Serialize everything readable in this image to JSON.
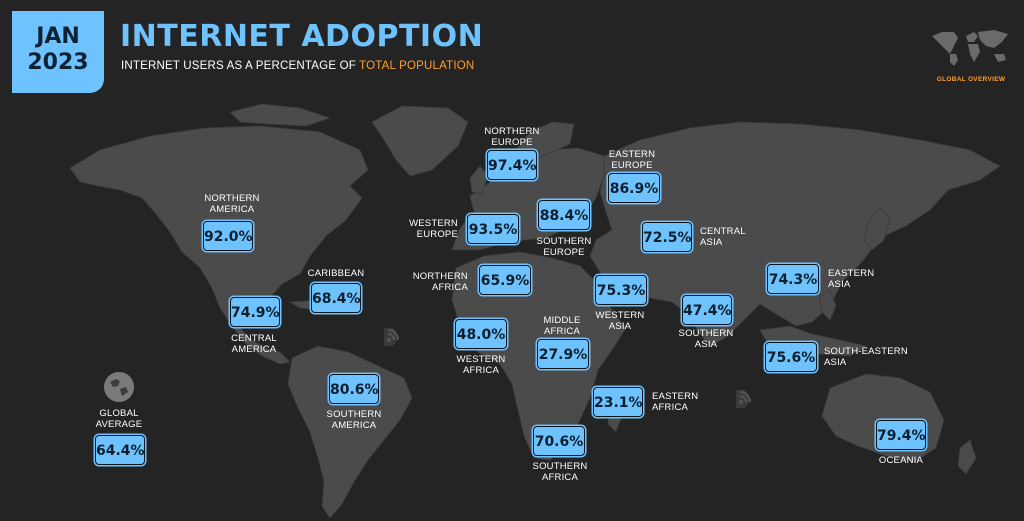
{
  "header": {
    "month": "JAN",
    "year": "2023",
    "title": "INTERNET ADOPTION",
    "subtitle_prefix": "INTERNET USERS AS A PERCENTAGE OF ",
    "subtitle_highlight": "TOTAL POPULATION"
  },
  "overview": {
    "label": "GLOBAL OVERVIEW"
  },
  "colors": {
    "accent": "#6ec3ff",
    "highlight": "#ff9e2b",
    "background": "#242424",
    "land": "#4a4a4a"
  },
  "regions": {
    "northern_america": {
      "name_line1": "NORTHERN",
      "name_line2": "AMERICA",
      "value": "92.0%"
    },
    "central_america": {
      "name_line1": "CENTRAL",
      "name_line2": "AMERICA",
      "value": "74.9%"
    },
    "caribbean": {
      "name_line1": "CARIBBEAN",
      "value": "68.4%"
    },
    "southern_america": {
      "name_line1": "SOUTHERN",
      "name_line2": "AMERICA",
      "value": "80.6%"
    },
    "northern_europe": {
      "name_line1": "NORTHERN",
      "name_line2": "EUROPE",
      "value": "97.4%"
    },
    "western_europe": {
      "name_line1": "WESTERN",
      "name_line2": "EUROPE",
      "value": "93.5%"
    },
    "southern_europe": {
      "name_line1": "SOUTHERN",
      "name_line2": "EUROPE",
      "value": "88.4%"
    },
    "eastern_europe": {
      "name_line1": "EASTERN",
      "name_line2": "EUROPE",
      "value": "86.9%"
    },
    "northern_africa": {
      "name_line1": "NORTHERN",
      "name_line2": "AFRICA",
      "value": "65.9%"
    },
    "western_africa": {
      "name_line1": "WESTERN",
      "name_line2": "AFRICA",
      "value": "48.0%"
    },
    "middle_africa": {
      "name_line1": "MIDDLE",
      "name_line2": "AFRICA",
      "value": "27.9%"
    },
    "eastern_africa": {
      "name_line1": "EASTERN",
      "name_line2": "AFRICA",
      "value": "23.1%"
    },
    "southern_africa": {
      "name_line1": "SOUTHERN",
      "name_line2": "AFRICA",
      "value": "70.6%"
    },
    "western_asia": {
      "name_line1": "WESTERN",
      "name_line2": "ASIA",
      "value": "75.3%"
    },
    "central_asia": {
      "name_line1": "CENTRAL",
      "name_line2": "ASIA",
      "value": "72.5%"
    },
    "southern_asia": {
      "name_line1": "SOUTHERN",
      "name_line2": "ASIA",
      "value": "47.4%"
    },
    "eastern_asia": {
      "name_line1": "EASTERN",
      "name_line2": "ASIA",
      "value": "74.3%"
    },
    "south_eastern_asia": {
      "name_line1": "SOUTH-EASTERN",
      "name_line2": "ASIA",
      "value": "75.6%"
    },
    "oceania": {
      "name_line1": "OCEANIA",
      "value": "79.4%"
    }
  },
  "global": {
    "name_line1": "GLOBAL",
    "name_line2": "AVERAGE",
    "value": "64.4%"
  }
}
